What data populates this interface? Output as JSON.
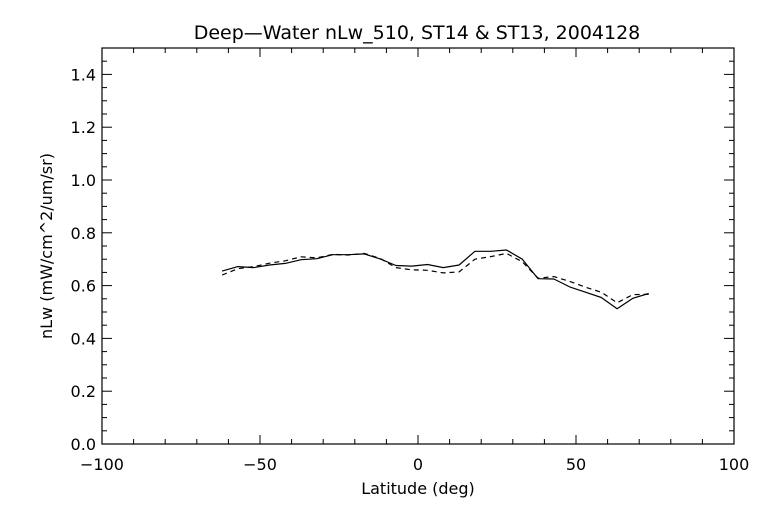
{
  "chart_data": {
    "type": "line",
    "title": "Deep—Water nLw_510, ST14 & ST13, 2004128",
    "xlabel": "Latitude (deg)",
    "ylabel": "nLw (mW/cm^2/um/sr)",
    "xlim": [
      -100,
      100
    ],
    "ylim": [
      0.0,
      1.5
    ],
    "x_ticks": [
      -100,
      -50,
      0,
      50,
      100
    ],
    "x_tick_labels": [
      "−100",
      "−50",
      "0",
      "50",
      "100"
    ],
    "y_ticks": [
      0.0,
      0.2,
      0.4,
      0.6,
      0.8,
      1.0,
      1.2,
      1.4
    ],
    "y_tick_labels": [
      "0.0",
      "0.2",
      "0.4",
      "0.6",
      "0.8",
      "1.0",
      "1.2",
      "1.4"
    ],
    "grid": false,
    "legend": "none",
    "series": [
      {
        "style": "solid",
        "color": "#000000",
        "x": [
          -62,
          -57,
          -52,
          -47,
          -42,
          -37,
          -32,
          -27,
          -22,
          -17,
          -12,
          -7,
          -2,
          3,
          8,
          13,
          18,
          23,
          28,
          33,
          38,
          43,
          48,
          53,
          58,
          63,
          68,
          73
        ],
        "y": [
          0.655,
          0.672,
          0.668,
          0.678,
          0.684,
          0.698,
          0.702,
          0.717,
          0.717,
          0.72,
          0.701,
          0.676,
          0.674,
          0.68,
          0.668,
          0.678,
          0.73,
          0.73,
          0.735,
          0.7,
          0.626,
          0.625,
          0.595,
          0.575,
          0.555,
          0.512,
          0.552,
          0.57
        ]
      },
      {
        "style": "dashed",
        "color": "#000000",
        "x": [
          -62,
          -57,
          -52,
          -47,
          -42,
          -37,
          -32,
          -27,
          -22,
          -17,
          -12,
          -7,
          -2,
          3,
          8,
          13,
          18,
          23,
          28,
          33,
          38,
          43,
          48,
          53,
          58,
          63,
          68,
          73
        ],
        "y": [
          0.64,
          0.664,
          0.672,
          0.685,
          0.694,
          0.709,
          0.705,
          0.718,
          0.716,
          0.722,
          0.703,
          0.668,
          0.66,
          0.658,
          0.648,
          0.652,
          0.7,
          0.71,
          0.722,
          0.69,
          0.628,
          0.634,
          0.616,
          0.594,
          0.575,
          0.535,
          0.566,
          0.567
        ]
      }
    ]
  }
}
